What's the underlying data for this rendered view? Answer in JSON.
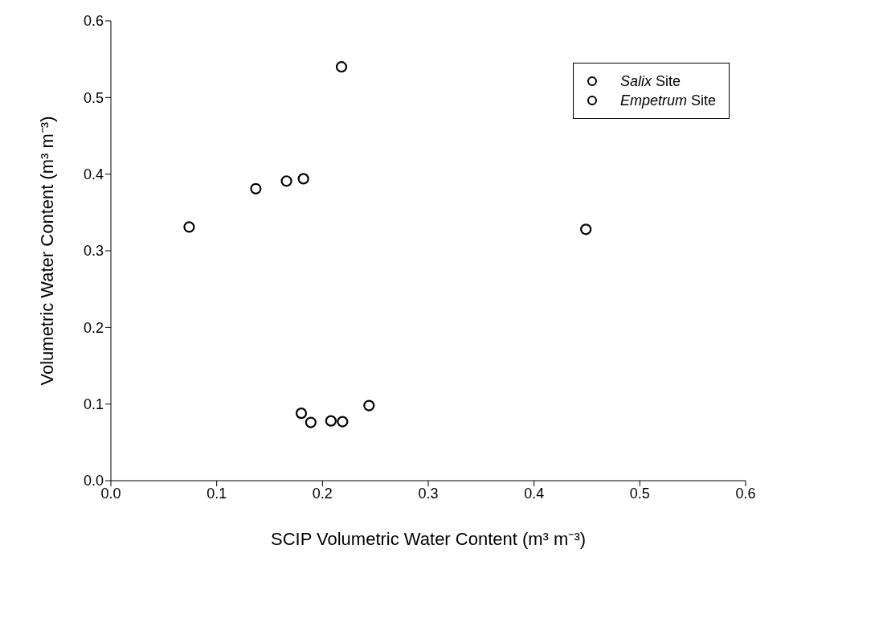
{
  "chart_data": {
    "type": "scatter",
    "xlabel": "SCIP Volumetric Water Content (m³ m⁻³)",
    "ylabel": "Volumetric Water Content (m³ m⁻³)",
    "xlim": [
      0,
      0.6
    ],
    "ylim": [
      0,
      0.6
    ],
    "xticks": [
      {
        "value": 0,
        "label": "0.0"
      },
      {
        "value": 0.1,
        "label": "0.1"
      },
      {
        "value": 0.2,
        "label": "0.2"
      },
      {
        "value": 0.3,
        "label": "0.3"
      },
      {
        "value": 0.4,
        "label": "0.4"
      },
      {
        "value": 0.5,
        "label": "0.5"
      },
      {
        "value": 0.6,
        "label": "0.6"
      }
    ],
    "yticks": [
      {
        "value": 0,
        "label": "0.0"
      },
      {
        "value": 0.1,
        "label": "0.1"
      },
      {
        "value": 0.2,
        "label": "0.2"
      },
      {
        "value": 0.3,
        "label": "0.3"
      },
      {
        "value": 0.4,
        "label": "0.4"
      },
      {
        "value": 0.5,
        "label": "0.5"
      },
      {
        "value": 0.6,
        "label": "0.6"
      }
    ],
    "grid": false,
    "legend": "top right",
    "marker": "circle",
    "series": [
      {
        "name": "Salix Site",
        "color": "#000000",
        "x": [
          0.18,
          0.189,
          0.208,
          0.219,
          0.244
        ],
        "values": [
          0.088,
          0.076,
          0.078,
          0.077,
          0.098
        ]
      },
      {
        "name": "Empetrum Site",
        "color": "#000000",
        "x": [
          0.074,
          0.137,
          0.166,
          0.182,
          0.218,
          0.449
        ],
        "values": [
          0.331,
          0.381,
          0.391,
          0.394,
          0.54,
          0.328
        ]
      }
    ]
  }
}
